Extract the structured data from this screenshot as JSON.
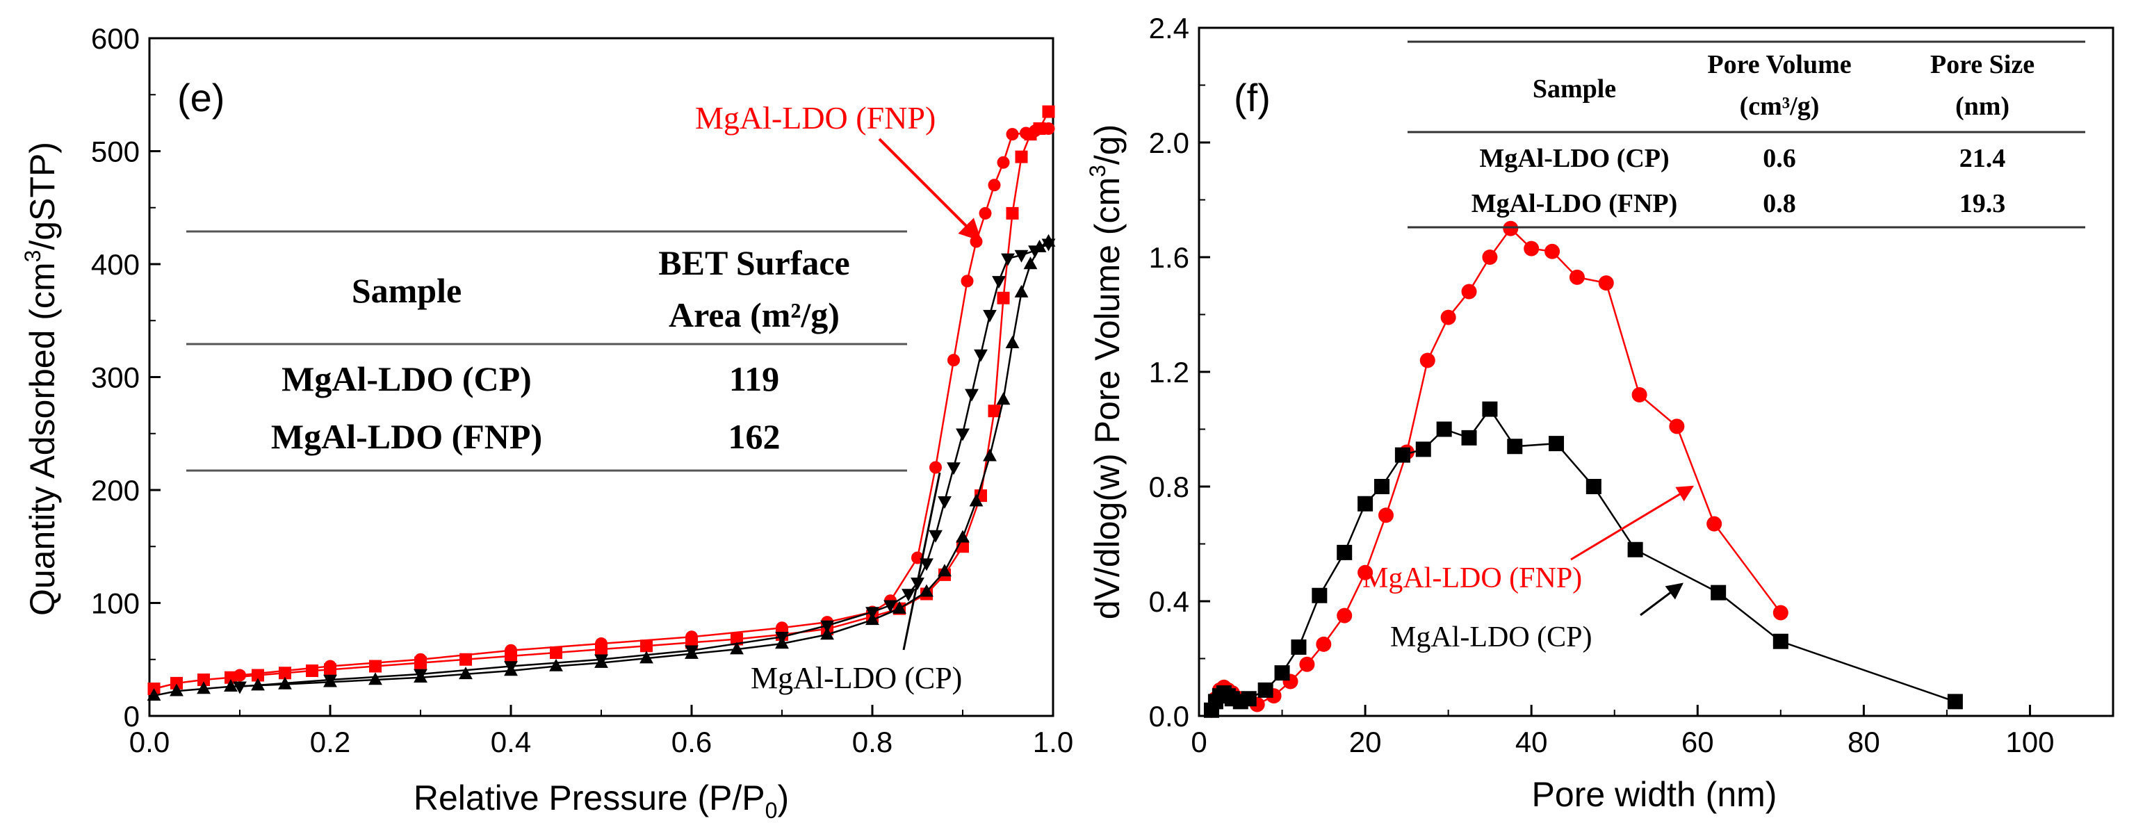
{
  "chart_data": [
    {
      "panel": "(e)",
      "type": "line",
      "xlabel_main": "Relative Pressure (P/P",
      "xlabel_sub": "0",
      "xlabel_close": ")",
      "ylabel_main": "Quantity Adsorbed (cm",
      "ylabel_sup": "3",
      "ylabel_rest": "/gSTP)",
      "xlim": [
        0.0,
        1.0
      ],
      "ylim": [
        0,
        600
      ],
      "xticks": [
        "0.0",
        "0.2",
        "0.4",
        "0.6",
        "0.8",
        "1.0"
      ],
      "yticks": [
        "0",
        "100",
        "200",
        "300",
        "400",
        "500",
        "600"
      ],
      "series": [
        {
          "name": "MgAl-LDO (FNP) adsorption",
          "color": "#ff0000",
          "marker": "square",
          "x": [
            0.005,
            0.03,
            0.06,
            0.09,
            0.12,
            0.15,
            0.18,
            0.2,
            0.25,
            0.3,
            0.35,
            0.4,
            0.45,
            0.5,
            0.55,
            0.6,
            0.65,
            0.7,
            0.75,
            0.8,
            0.83,
            0.86,
            0.88,
            0.9,
            0.92,
            0.935,
            0.945,
            0.955,
            0.965,
            0.975,
            0.985,
            0.995
          ],
          "y": [
            24,
            29,
            32,
            34,
            36,
            38,
            40,
            41,
            44,
            47,
            50,
            53,
            56,
            59,
            62,
            65,
            68,
            72,
            77,
            88,
            95,
            108,
            125,
            150,
            195,
            270,
            370,
            445,
            495,
            515,
            520,
            535
          ]
        },
        {
          "name": "MgAl-LDO (FNP) desorption",
          "color": "#ff0000",
          "marker": "circle",
          "x": [
            0.995,
            0.98,
            0.97,
            0.955,
            0.945,
            0.935,
            0.925,
            0.915,
            0.905,
            0.89,
            0.87,
            0.85,
            0.82,
            0.8,
            0.75,
            0.7,
            0.6,
            0.5,
            0.4,
            0.3,
            0.2,
            0.1
          ],
          "y": [
            520,
            518,
            516,
            515,
            490,
            470,
            445,
            420,
            385,
            315,
            220,
            140,
            102,
            92,
            83,
            78,
            70,
            64,
            58,
            50,
            44,
            36
          ]
        },
        {
          "name": "MgAl-LDO (CP) adsorption",
          "color": "#000000",
          "marker": "triangle-up",
          "x": [
            0.005,
            0.03,
            0.06,
            0.09,
            0.12,
            0.15,
            0.2,
            0.25,
            0.3,
            0.35,
            0.4,
            0.45,
            0.5,
            0.55,
            0.6,
            0.65,
            0.7,
            0.75,
            0.8,
            0.83,
            0.86,
            0.88,
            0.9,
            0.915,
            0.93,
            0.945,
            0.955,
            0.965,
            0.975,
            0.985,
            0.995
          ],
          "y": [
            18,
            22,
            24,
            26,
            27,
            28,
            30,
            32,
            34,
            37,
            40,
            44,
            47,
            51,
            55,
            59,
            64,
            72,
            85,
            95,
            110,
            128,
            158,
            190,
            230,
            280,
            330,
            375,
            400,
            415,
            420
          ]
        },
        {
          "name": "MgAl-LDO (CP) desorption",
          "color": "#000000",
          "marker": "triangle-down",
          "x": [
            0.995,
            0.98,
            0.965,
            0.95,
            0.94,
            0.93,
            0.92,
            0.91,
            0.9,
            0.89,
            0.88,
            0.87,
            0.86,
            0.85,
            0.84,
            0.82,
            0.8,
            0.75,
            0.7,
            0.6,
            0.5,
            0.4,
            0.3,
            0.2,
            0.1
          ],
          "y": [
            418,
            412,
            408,
            405,
            385,
            355,
            320,
            285,
            250,
            220,
            190,
            160,
            135,
            118,
            108,
            98,
            92,
            80,
            70,
            58,
            50,
            44,
            37,
            32,
            26
          ]
        }
      ],
      "annotations": {
        "fnp_label": "MgAl-LDO (FNP)",
        "cp_label": "MgAl-LDO (CP)"
      },
      "table": {
        "col1": "Sample",
        "col2_line1": "BET Surface",
        "col2_line2": "Area (m²/g)",
        "rows": [
          {
            "sample": "MgAl-LDO (CP)",
            "value": "119"
          },
          {
            "sample": "MgAl-LDO (FNP)",
            "value": "162"
          }
        ]
      }
    },
    {
      "panel": "(f)",
      "type": "line",
      "xlabel": "Pore width (nm)",
      "ylabel_main": "dV/dlog(w) Pore Volume (cm",
      "ylabel_sup": "3",
      "ylabel_rest": "/g)",
      "xlim": [
        0,
        110
      ],
      "ylim": [
        0.0,
        2.4
      ],
      "xticks": [
        "0",
        "20",
        "40",
        "60",
        "80",
        "100"
      ],
      "yticks": [
        "0.0",
        "0.4",
        "0.8",
        "1.2",
        "1.6",
        "2.0",
        "2.4"
      ],
      "series": [
        {
          "name": "MgAl-LDO (FNP)",
          "color": "#ff0000",
          "marker": "circle",
          "x": [
            1.5,
            2.0,
            2.5,
            3.0,
            3.5,
            4.0,
            5.0,
            7,
            9,
            11,
            13,
            15,
            17.5,
            20,
            22.5,
            25,
            27.5,
            30,
            32.5,
            35,
            37.5,
            40,
            42.5,
            45.5,
            49,
            53,
            57.5,
            62,
            70
          ],
          "y": [
            0.02,
            0.06,
            0.09,
            0.1,
            0.09,
            0.08,
            0.06,
            0.04,
            0.07,
            0.12,
            0.18,
            0.25,
            0.35,
            0.5,
            0.7,
            0.92,
            1.24,
            1.39,
            1.48,
            1.6,
            1.7,
            1.63,
            1.62,
            1.53,
            1.51,
            1.12,
            1.01,
            0.67,
            0.36
          ]
        },
        {
          "name": "MgAl-LDO (CP)",
          "color": "#000000",
          "marker": "square",
          "x": [
            1.5,
            2.0,
            2.5,
            3.0,
            3.5,
            4.0,
            5.0,
            6,
            8,
            10,
            12,
            14.5,
            17.5,
            20,
            22,
            24.5,
            27,
            29.5,
            32.5,
            35,
            38,
            43,
            47.5,
            52.5,
            62.5,
            70,
            91
          ],
          "y": [
            0.02,
            0.05,
            0.07,
            0.08,
            0.07,
            0.06,
            0.05,
            0.06,
            0.09,
            0.15,
            0.24,
            0.42,
            0.57,
            0.74,
            0.8,
            0.91,
            0.93,
            1.0,
            0.97,
            1.07,
            0.94,
            0.95,
            0.8,
            0.58,
            0.43,
            0.26,
            0.05
          ]
        }
      ],
      "annotations": {
        "fnp_label": "MgAl-LDO (FNP)",
        "cp_label": "MgAl-LDO (CP)"
      },
      "table": {
        "col1": "Sample",
        "col2_line1": "Pore Volume",
        "col2_line2": "(cm³/g)",
        "col3_line1": "Pore Size",
        "col3_line2": "(nm)",
        "rows": [
          {
            "sample": "MgAl-LDO (CP)",
            "volume": "0.6",
            "size": "21.4"
          },
          {
            "sample": "MgAl-LDO (FNP)",
            "volume": "0.8",
            "size": "19.3"
          }
        ]
      }
    }
  ]
}
